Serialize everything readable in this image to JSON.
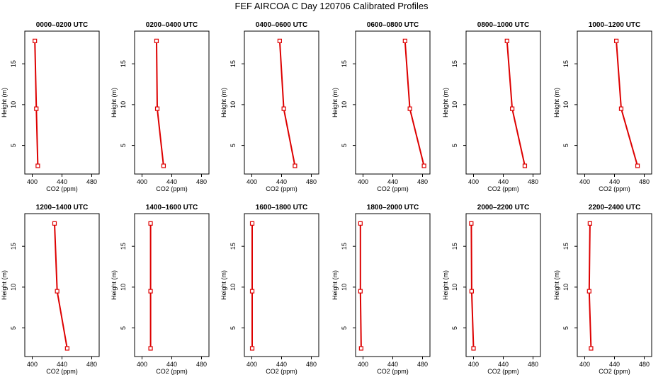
{
  "title": "FEF AIRCOA C  Day 120706  Calibrated Profiles",
  "chart_data": {
    "type": "line",
    "xlabel": "CO2 (ppm)",
    "ylabel": "Height (m)",
    "xlim": [
      390,
      490
    ],
    "ylim": [
      1.5,
      19
    ],
    "xticks": [
      400,
      440,
      480
    ],
    "yticks": [
      5,
      10,
      15
    ],
    "grid": false,
    "line_color": "#dd0000",
    "panels": [
      {
        "title": "0000–0200 UTC",
        "points": [
          {
            "co2": 407.5,
            "height": 2.5
          },
          {
            "co2": 405.5,
            "height": 9.5
          },
          {
            "co2": 403.5,
            "height": 17.8
          }
        ]
      },
      {
        "title": "0200–0400 UTC",
        "points": [
          {
            "co2": 429.0,
            "height": 2.5
          },
          {
            "co2": 420.5,
            "height": 9.5
          },
          {
            "co2": 419.5,
            "height": 17.8
          }
        ]
      },
      {
        "title": "0400–0600 UTC",
        "points": [
          {
            "co2": 458.0,
            "height": 2.5
          },
          {
            "co2": 443.0,
            "height": 9.5
          },
          {
            "co2": 437.5,
            "height": 17.8
          }
        ]
      },
      {
        "title": "0600–0800 UTC",
        "points": [
          {
            "co2": 482.0,
            "height": 2.5
          },
          {
            "co2": 463.0,
            "height": 9.5
          },
          {
            "co2": 456.5,
            "height": 17.8
          }
        ]
      },
      {
        "title": "0800–1000 UTC",
        "points": [
          {
            "co2": 469.0,
            "height": 2.5
          },
          {
            "co2": 452.0,
            "height": 9.5
          },
          {
            "co2": 445.0,
            "height": 17.8
          }
        ]
      },
      {
        "title": "1000–1200 UTC",
        "points": [
          {
            "co2": 471.0,
            "height": 2.5
          },
          {
            "co2": 449.0,
            "height": 9.5
          },
          {
            "co2": 442.5,
            "height": 17.8
          }
        ]
      },
      {
        "title": "1200–1400 UTC",
        "points": [
          {
            "co2": 447.0,
            "height": 2.5
          },
          {
            "co2": 433.5,
            "height": 9.5
          },
          {
            "co2": 430.0,
            "height": 17.8
          }
        ]
      },
      {
        "title": "1400–1600 UTC",
        "points": [
          {
            "co2": 411.5,
            "height": 2.5
          },
          {
            "co2": 411.5,
            "height": 9.5
          },
          {
            "co2": 411.5,
            "height": 17.8
          }
        ]
      },
      {
        "title": "1600–1800 UTC",
        "points": [
          {
            "co2": 400.5,
            "height": 2.5
          },
          {
            "co2": 400.5,
            "height": 9.5
          },
          {
            "co2": 400.5,
            "height": 17.8
          }
        ]
      },
      {
        "title": "1800–2000 UTC",
        "points": [
          {
            "co2": 397.5,
            "height": 2.5
          },
          {
            "co2": 396.5,
            "height": 9.5
          },
          {
            "co2": 396.5,
            "height": 17.8
          }
        ]
      },
      {
        "title": "2000–2200 UTC",
        "points": [
          {
            "co2": 400.0,
            "height": 2.5
          },
          {
            "co2": 397.5,
            "height": 9.5
          },
          {
            "co2": 397.0,
            "height": 17.8
          }
        ]
      },
      {
        "title": "2200–2400 UTC",
        "points": [
          {
            "co2": 408.5,
            "height": 2.5
          },
          {
            "co2": 406.0,
            "height": 9.5
          },
          {
            "co2": 407.0,
            "height": 17.8
          }
        ]
      }
    ]
  }
}
